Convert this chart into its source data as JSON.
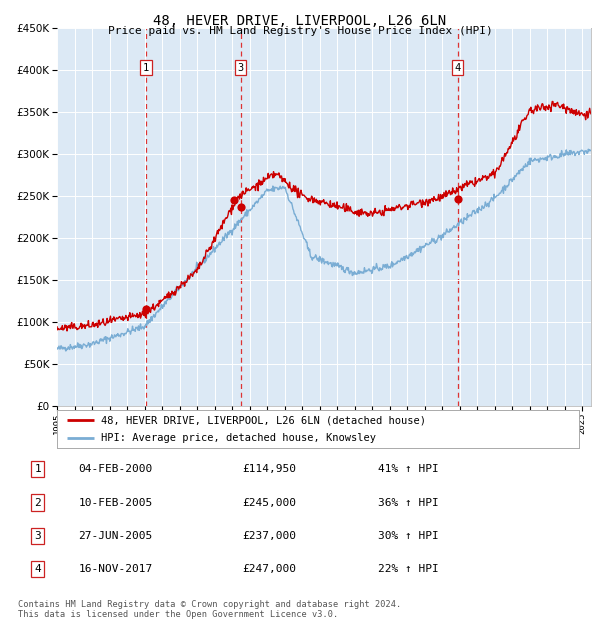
{
  "title": "48, HEVER DRIVE, LIVERPOOL, L26 6LN",
  "subtitle": "Price paid vs. HM Land Registry's House Price Index (HPI)",
  "footer": "Contains HM Land Registry data © Crown copyright and database right 2024.\nThis data is licensed under the Open Government Licence v3.0.",
  "legend_label_red": "48, HEVER DRIVE, LIVERPOOL, L26 6LN (detached house)",
  "legend_label_blue": "HPI: Average price, detached house, Knowsley",
  "bg_color": "#dce9f5",
  "red_color": "#cc0000",
  "blue_color": "#7aadd4",
  "grid_color": "#ffffff",
  "dashed_line_color": "#dd3333",
  "ylim": [
    0,
    450000
  ],
  "yticks": [
    0,
    50000,
    100000,
    150000,
    200000,
    250000,
    300000,
    350000,
    400000,
    450000
  ],
  "xlim_start": 1995,
  "xlim_end": 2025.5,
  "transactions": [
    {
      "num": 1,
      "date": "04-FEB-2000",
      "year": 2000.09,
      "price": 114950,
      "label": "1"
    },
    {
      "num": 2,
      "date": "10-FEB-2005",
      "year": 2005.11,
      "price": 245000,
      "label": "2"
    },
    {
      "num": 3,
      "date": "27-JUN-2005",
      "year": 2005.49,
      "price": 237000,
      "label": "3"
    },
    {
      "num": 4,
      "date": "16-NOV-2017",
      "year": 2017.88,
      "price": 247000,
      "label": "4"
    }
  ],
  "vlines_shown": [
    1,
    3,
    4
  ],
  "table_rows": [
    [
      "1",
      "04-FEB-2000",
      "£114,950",
      "41% ↑ HPI"
    ],
    [
      "2",
      "10-FEB-2005",
      "£245,000",
      "36% ↑ HPI"
    ],
    [
      "3",
      "27-JUN-2005",
      "£237,000",
      "30% ↑ HPI"
    ],
    [
      "4",
      "16-NOV-2017",
      "£247,000",
      "22% ↑ HPI"
    ]
  ]
}
